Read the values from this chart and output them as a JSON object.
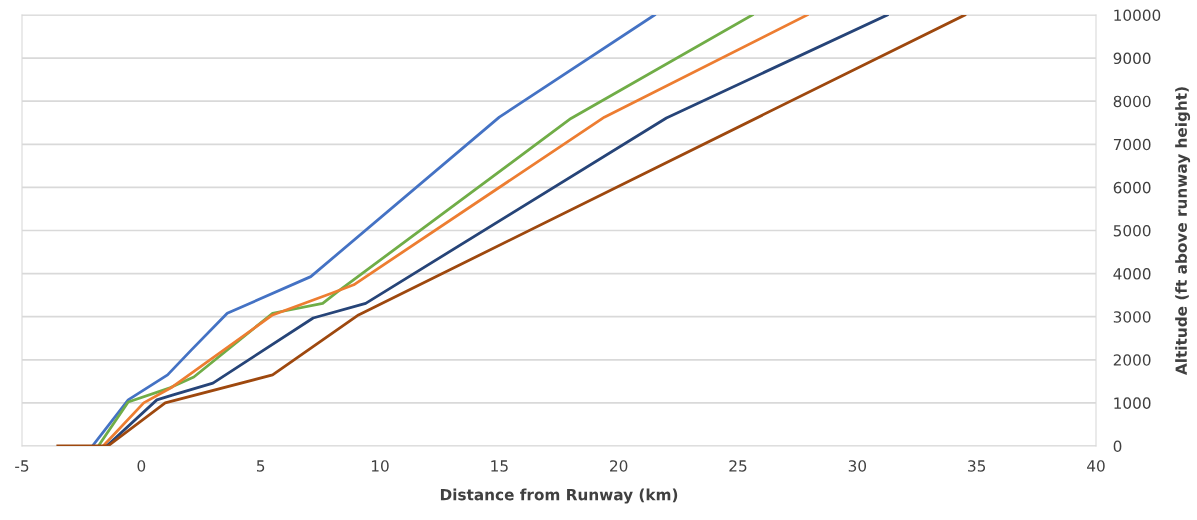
{
  "chart_data": {
    "type": "line",
    "xlabel": "Distance from Runway (km)",
    "ylabel": "Altitude (ft above runway height)",
    "xlim": [
      -5,
      40
    ],
    "xticks": [
      -5,
      0,
      5,
      10,
      15,
      20,
      25,
      30,
      35,
      40
    ],
    "ylim": [
      0,
      10000
    ],
    "yticks": [
      0,
      1000,
      2000,
      3000,
      4000,
      5000,
      6000,
      7000,
      8000,
      9000,
      10000
    ],
    "grid": "y",
    "marker": "none",
    "line_style": "solid",
    "series": [
      {
        "color": "#4472c4",
        "x": [
          -2.05,
          -0.55,
          1.1,
          2.1,
          3.6,
          7.1,
          15.0,
          21.5
        ],
        "values": [
          0,
          1070,
          1650,
          2230,
          3080,
          3930,
          7630,
          10000
        ]
      },
      {
        "color": "#70ad47",
        "x": [
          -1.8,
          -0.55,
          1.2,
          2.2,
          5.5,
          7.6,
          8.2,
          18.0,
          25.6
        ],
        "values": [
          0,
          1020,
          1350,
          1600,
          3080,
          3310,
          3570,
          7600,
          10000
        ]
      },
      {
        "color": "#ed7d31",
        "x": [
          -1.6,
          0.1,
          1.3,
          5.5,
          8.0,
          8.9,
          19.4,
          27.9
        ],
        "values": [
          0,
          1000,
          1370,
          3040,
          3550,
          3740,
          7630,
          10000
        ]
      },
      {
        "color": "#264478",
        "x": [
          -1.45,
          0.65,
          1.3,
          3.0,
          7.2,
          9.4,
          22.0,
          31.25
        ],
        "values": [
          0,
          1070,
          1180,
          1460,
          2970,
          3310,
          7610,
          10000
        ]
      },
      {
        "color": "#9e480e",
        "x": [
          -3.5,
          -1.4,
          1.0,
          5.5,
          9.1,
          34.5
        ],
        "values": [
          0,
          0,
          1000,
          1650,
          3040,
          10000
        ]
      }
    ]
  }
}
